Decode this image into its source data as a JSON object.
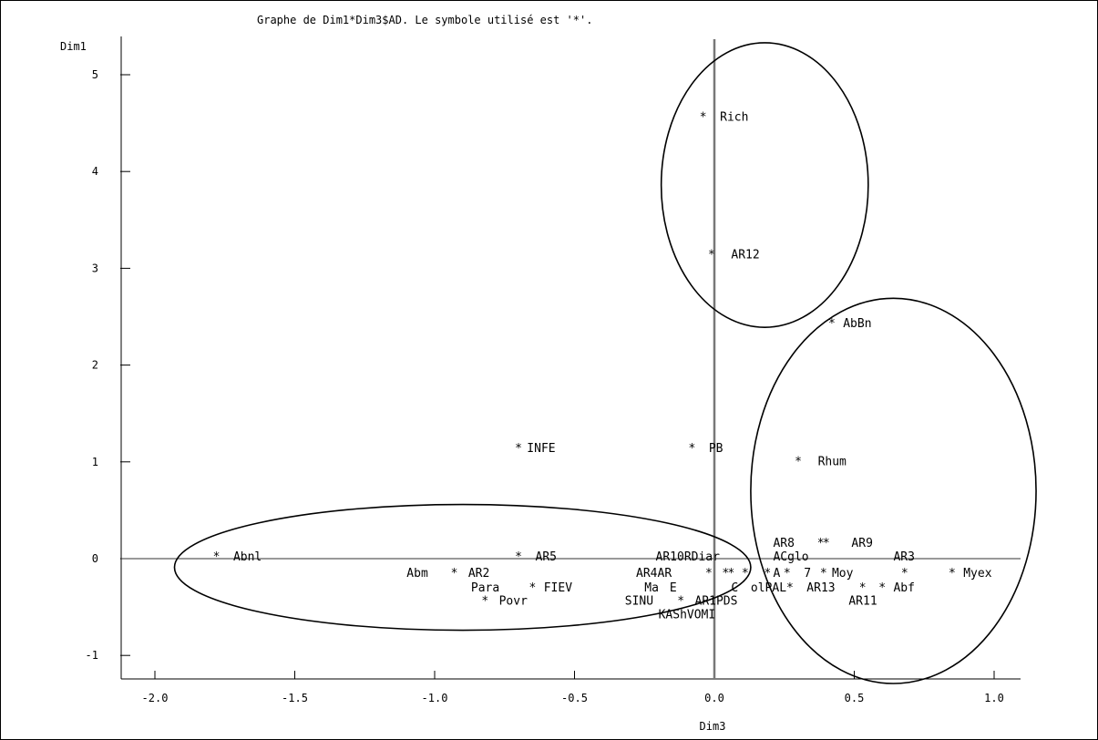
{
  "chart_data": {
    "type": "scatter",
    "title": "Graphe de Dim1*Dim3$AD.  Le symbole utilisé est '*'.",
    "xlabel": "Dim3",
    "ylabel": "Dim1",
    "symbol": "*",
    "xlim": [
      -2.1,
      1.1
    ],
    "ylim": [
      -1.25,
      5.4
    ],
    "xticks": [
      -2.0,
      -1.5,
      -1.0,
      -0.5,
      0.0,
      0.5,
      1.0
    ],
    "xtick_labels": [
      "-2.0",
      "-1.5",
      "-1.0",
      "-0.5",
      "0.0",
      "0.5",
      "1.0"
    ],
    "yticks": [
      -1,
      0,
      1,
      2,
      3,
      4,
      5
    ],
    "ytick_labels": [
      "-1",
      "0",
      "1",
      "2",
      "3",
      "4",
      "5"
    ],
    "reference_lines": {
      "x": 0,
      "y": 0
    },
    "stars": [
      {
        "x": -0.04,
        "y": 4.57
      },
      {
        "x": -0.01,
        "y": 3.15
      },
      {
        "x": 0.42,
        "y": 2.44
      },
      {
        "x": -0.7,
        "y": 1.15
      },
      {
        "x": -0.08,
        "y": 1.15
      },
      {
        "x": 0.3,
        "y": 1.01
      },
      {
        "x": 0.38,
        "y": 0.17
      },
      {
        "x": 0.4,
        "y": 0.17
      },
      {
        "x": -1.78,
        "y": 0.03
      },
      {
        "x": -0.7,
        "y": 0.03
      },
      {
        "x": -0.93,
        "y": -0.14
      },
      {
        "x": -0.02,
        "y": -0.14
      },
      {
        "x": 0.04,
        "y": -0.14
      },
      {
        "x": 0.06,
        "y": -0.14
      },
      {
        "x": 0.11,
        "y": -0.14
      },
      {
        "x": 0.19,
        "y": -0.14
      },
      {
        "x": 0.26,
        "y": -0.14
      },
      {
        "x": 0.39,
        "y": -0.14
      },
      {
        "x": 0.68,
        "y": -0.14
      },
      {
        "x": 0.85,
        "y": -0.14
      },
      {
        "x": -0.65,
        "y": -0.29
      },
      {
        "x": 0.27,
        "y": -0.29
      },
      {
        "x": 0.53,
        "y": -0.29
      },
      {
        "x": 0.6,
        "y": -0.29
      },
      {
        "x": -0.82,
        "y": -0.43
      },
      {
        "x": -0.12,
        "y": -0.43
      }
    ],
    "labels": [
      {
        "text": "Rich",
        "x": 0.02,
        "y": 4.57
      },
      {
        "text": "AR12",
        "x": 0.06,
        "y": 3.15
      },
      {
        "text": "AbBn",
        "x": 0.46,
        "y": 2.44
      },
      {
        "text": "INFE",
        "x": -0.67,
        "y": 1.15
      },
      {
        "text": "PB",
        "x": -0.02,
        "y": 1.15
      },
      {
        "text": "Rhum",
        "x": 0.37,
        "y": 1.01
      },
      {
        "text": "AR8",
        "x": 0.21,
        "y": 0.17
      },
      {
        "text": "AR9",
        "x": 0.49,
        "y": 0.17
      },
      {
        "text": "Abnl",
        "x": -1.72,
        "y": 0.03
      },
      {
        "text": "AR5",
        "x": -0.64,
        "y": 0.03
      },
      {
        "text": "AR10RDiar",
        "x": -0.21,
        "y": 0.03
      },
      {
        "text": "ACglo",
        "x": 0.21,
        "y": 0.03
      },
      {
        "text": "AR3",
        "x": 0.64,
        "y": 0.03
      },
      {
        "text": "Abm",
        "x": -1.1,
        "y": -0.14
      },
      {
        "text": "AR2",
        "x": -0.88,
        "y": -0.14
      },
      {
        "text": "AR4AR",
        "x": -0.28,
        "y": -0.14
      },
      {
        "text": "A",
        "x": 0.21,
        "y": -0.14
      },
      {
        "text": "7",
        "x": 0.32,
        "y": -0.14
      },
      {
        "text": "Moy",
        "x": 0.42,
        "y": -0.14
      },
      {
        "text": "Myex",
        "x": 0.89,
        "y": -0.14
      },
      {
        "text": "Para",
        "x": -0.87,
        "y": -0.29
      },
      {
        "text": "FIEV",
        "x": -0.61,
        "y": -0.29
      },
      {
        "text": "Ma",
        "x": -0.25,
        "y": -0.29
      },
      {
        "text": "E",
        "x": -0.16,
        "y": -0.29
      },
      {
        "text": "C",
        "x": 0.06,
        "y": -0.29
      },
      {
        "text": "olPAL",
        "x": 0.13,
        "y": -0.29
      },
      {
        "text": "AR13",
        "x": 0.33,
        "y": -0.29
      },
      {
        "text": "Abf",
        "x": 0.64,
        "y": -0.29
      },
      {
        "text": "Povr",
        "x": -0.77,
        "y": -0.43
      },
      {
        "text": "SINU",
        "x": -0.32,
        "y": -0.43
      },
      {
        "text": "AR1PDS",
        "x": -0.07,
        "y": -0.43
      },
      {
        "text": "AR11",
        "x": 0.48,
        "y": -0.43
      },
      {
        "text": "KAShVOMI",
        "x": -0.2,
        "y": -0.57
      }
    ],
    "ellipses": [
      {
        "cx": 0.18,
        "cy": 3.86,
        "rx": 0.37,
        "ry": 1.47
      },
      {
        "cx": 0.64,
        "cy": 0.7,
        "rx": 0.51,
        "ry": 1.99
      },
      {
        "cx": -0.9,
        "cy": -0.09,
        "rx": 1.03,
        "ry": 0.65
      }
    ]
  }
}
